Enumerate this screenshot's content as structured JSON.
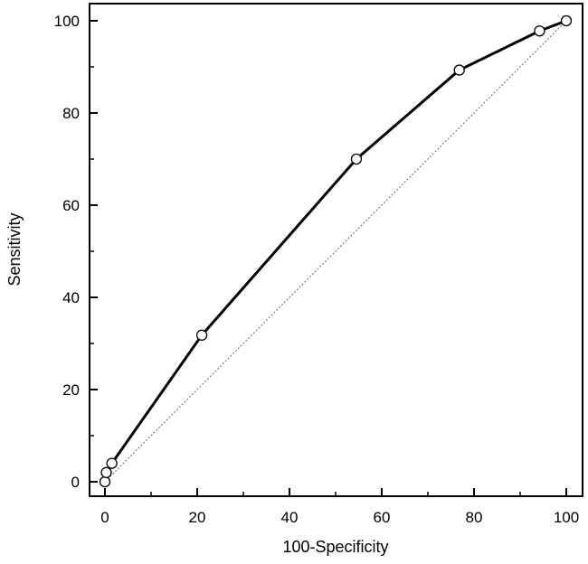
{
  "chart_data": {
    "type": "line",
    "title": "",
    "xlabel": "100-Specificity",
    "ylabel": "Sensitivity",
    "xlim": [
      0,
      100
    ],
    "ylim": [
      0,
      100
    ],
    "x_ticks": [
      "0",
      "20",
      "40",
      "60",
      "80",
      "100"
    ],
    "y_ticks": [
      "0",
      "20",
      "40",
      "60",
      "80",
      "100"
    ],
    "grid": false,
    "series": [
      {
        "values": [
          {
            "x": 0,
            "y": 0
          },
          {
            "x": 0.3,
            "y": 2
          },
          {
            "x": 1.5,
            "y": 4
          },
          {
            "x": 21,
            "y": 31.8
          },
          {
            "x": 54.5,
            "y": 70
          },
          {
            "x": 76.8,
            "y": 89.3
          },
          {
            "x": 94.2,
            "y": 97.8
          },
          {
            "x": 100,
            "y": 100
          }
        ]
      }
    ],
    "reference_line": {
      "from": {
        "x": 0,
        "y": 0
      },
      "to": {
        "x": 100,
        "y": 100
      },
      "style": "dotted"
    }
  }
}
